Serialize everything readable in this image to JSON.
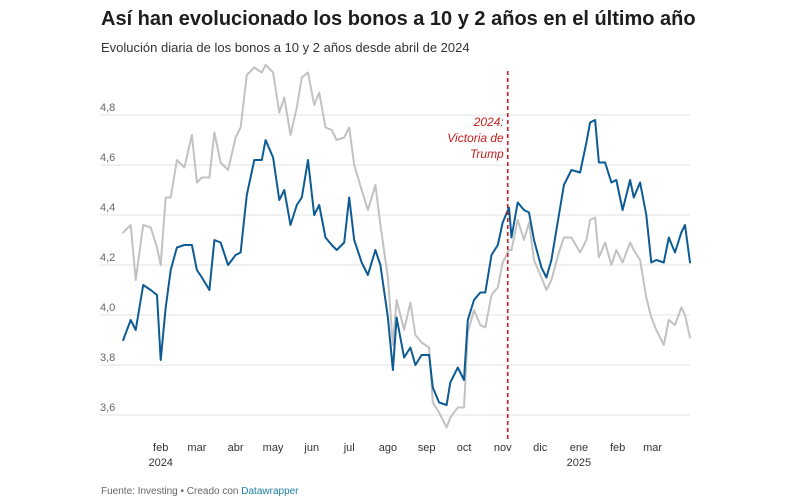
{
  "header": {
    "title": "Así han evolucionado los bonos a 10 y 2 años en el último año",
    "subtitle": "Evolución diaria de los bonos a 10 y 2 años desde abril de 2024"
  },
  "footer": {
    "source_text": "Fuente: Investing • Creado con",
    "credit_link": "Datawrapper"
  },
  "colors": {
    "series_10y": "#0c5b94",
    "series_2y": "#c2c2c2",
    "annotation": "#c71e1d",
    "grid": "#e3e3e3"
  },
  "chart_data": {
    "type": "line",
    "title": "Así han evolucionado los bonos a 10 y 2 años en el último año",
    "xlabel": "",
    "ylabel": "",
    "ylim": [
      3.5,
      5.0
    ],
    "y_ticks": [
      3.6,
      3.8,
      4.0,
      4.2,
      4.4,
      4.6,
      4.8
    ],
    "y_tick_labels": [
      "3,6",
      "3,8",
      "4,0",
      "4,2",
      "4,4",
      "4,6",
      "4,8"
    ],
    "x_range": [
      "2024-01-01",
      "2025-03-31"
    ],
    "x_ticks": [
      {
        "date": "2024-02-01",
        "label": "feb",
        "sublabel": "2024"
      },
      {
        "date": "2024-03-01",
        "label": "mar",
        "sublabel": ""
      },
      {
        "date": "2024-04-01",
        "label": "abr",
        "sublabel": ""
      },
      {
        "date": "2024-05-01",
        "label": "may",
        "sublabel": ""
      },
      {
        "date": "2024-06-01",
        "label": "jun",
        "sublabel": ""
      },
      {
        "date": "2024-07-01",
        "label": "jul",
        "sublabel": ""
      },
      {
        "date": "2024-08-01",
        "label": "ago",
        "sublabel": ""
      },
      {
        "date": "2024-09-01",
        "label": "sep",
        "sublabel": ""
      },
      {
        "date": "2024-10-01",
        "label": "oct",
        "sublabel": ""
      },
      {
        "date": "2024-11-01",
        "label": "nov",
        "sublabel": ""
      },
      {
        "date": "2024-12-01",
        "label": "dic",
        "sublabel": ""
      },
      {
        "date": "2025-01-01",
        "label": "ene",
        "sublabel": "2025"
      },
      {
        "date": "2025-02-01",
        "label": "feb",
        "sublabel": ""
      },
      {
        "date": "2025-03-01",
        "label": "mar",
        "sublabel": ""
      }
    ],
    "grid": true,
    "annotation": {
      "date": "2024-11-05",
      "lines": [
        "2024:",
        "Victoria de",
        "Trump"
      ]
    },
    "series": [
      {
        "key": "10y",
        "values": [
          [
            "2024-01-02",
            3.9
          ],
          [
            "2024-01-08",
            3.98
          ],
          [
            "2024-01-12",
            3.94
          ],
          [
            "2024-01-18",
            4.12
          ],
          [
            "2024-01-24",
            4.1
          ],
          [
            "2024-01-29",
            4.08
          ],
          [
            "2024-02-01",
            3.82
          ],
          [
            "2024-02-05",
            4.03
          ],
          [
            "2024-02-09",
            4.18
          ],
          [
            "2024-02-14",
            4.27
          ],
          [
            "2024-02-20",
            4.28
          ],
          [
            "2024-02-26",
            4.28
          ],
          [
            "2024-03-01",
            4.18
          ],
          [
            "2024-03-05",
            4.15
          ],
          [
            "2024-03-11",
            4.1
          ],
          [
            "2024-03-15",
            4.3
          ],
          [
            "2024-03-20",
            4.29
          ],
          [
            "2024-03-26",
            4.2
          ],
          [
            "2024-04-01",
            4.24
          ],
          [
            "2024-04-05",
            4.25
          ],
          [
            "2024-04-10",
            4.48
          ],
          [
            "2024-04-16",
            4.62
          ],
          [
            "2024-04-22",
            4.62
          ],
          [
            "2024-04-25",
            4.7
          ],
          [
            "2024-05-01",
            4.63
          ],
          [
            "2024-05-06",
            4.46
          ],
          [
            "2024-05-10",
            4.5
          ],
          [
            "2024-05-15",
            4.36
          ],
          [
            "2024-05-20",
            4.44
          ],
          [
            "2024-05-24",
            4.47
          ],
          [
            "2024-05-29",
            4.62
          ],
          [
            "2024-06-03",
            4.4
          ],
          [
            "2024-06-07",
            4.44
          ],
          [
            "2024-06-12",
            4.31
          ],
          [
            "2024-06-17",
            4.28
          ],
          [
            "2024-06-21",
            4.26
          ],
          [
            "2024-06-27",
            4.29
          ],
          [
            "2024-07-01",
            4.47
          ],
          [
            "2024-07-05",
            4.3
          ],
          [
            "2024-07-11",
            4.21
          ],
          [
            "2024-07-16",
            4.16
          ],
          [
            "2024-07-22",
            4.26
          ],
          [
            "2024-07-26",
            4.2
          ],
          [
            "2024-08-01",
            3.99
          ],
          [
            "2024-08-05",
            3.78
          ],
          [
            "2024-08-08",
            3.99
          ],
          [
            "2024-08-14",
            3.83
          ],
          [
            "2024-08-19",
            3.87
          ],
          [
            "2024-08-23",
            3.8
          ],
          [
            "2024-08-28",
            3.84
          ],
          [
            "2024-09-03",
            3.84
          ],
          [
            "2024-09-06",
            3.71
          ],
          [
            "2024-09-11",
            3.65
          ],
          [
            "2024-09-17",
            3.64
          ],
          [
            "2024-09-20",
            3.73
          ],
          [
            "2024-09-26",
            3.79
          ],
          [
            "2024-10-01",
            3.74
          ],
          [
            "2024-10-04",
            3.98
          ],
          [
            "2024-10-09",
            4.06
          ],
          [
            "2024-10-14",
            4.09
          ],
          [
            "2024-10-18",
            4.09
          ],
          [
            "2024-10-23",
            4.24
          ],
          [
            "2024-10-28",
            4.28
          ],
          [
            "2024-11-01",
            4.37
          ],
          [
            "2024-11-06",
            4.43
          ],
          [
            "2024-11-08",
            4.31
          ],
          [
            "2024-11-13",
            4.45
          ],
          [
            "2024-11-18",
            4.42
          ],
          [
            "2024-11-22",
            4.41
          ],
          [
            "2024-11-26",
            4.3
          ],
          [
            "2024-12-02",
            4.19
          ],
          [
            "2024-12-06",
            4.15
          ],
          [
            "2024-12-10",
            4.22
          ],
          [
            "2024-12-16",
            4.4
          ],
          [
            "2024-12-20",
            4.52
          ],
          [
            "2024-12-26",
            4.58
          ],
          [
            "2025-01-02",
            4.57
          ],
          [
            "2025-01-07",
            4.69
          ],
          [
            "2025-01-10",
            4.77
          ],
          [
            "2025-01-14",
            4.78
          ],
          [
            "2025-01-17",
            4.61
          ],
          [
            "2025-01-22",
            4.61
          ],
          [
            "2025-01-27",
            4.53
          ],
          [
            "2025-01-31",
            4.54
          ],
          [
            "2025-02-05",
            4.42
          ],
          [
            "2025-02-11",
            4.54
          ],
          [
            "2025-02-14",
            4.47
          ],
          [
            "2025-02-19",
            4.53
          ],
          [
            "2025-02-24",
            4.4
          ],
          [
            "2025-02-28",
            4.21
          ],
          [
            "2025-03-04",
            4.22
          ],
          [
            "2025-03-10",
            4.21
          ],
          [
            "2025-03-14",
            4.31
          ],
          [
            "2025-03-19",
            4.25
          ],
          [
            "2025-03-24",
            4.33
          ],
          [
            "2025-03-27",
            4.36
          ],
          [
            "2025-03-31",
            4.21
          ]
        ]
      },
      {
        "key": "2y",
        "values": [
          [
            "2024-01-02",
            4.33
          ],
          [
            "2024-01-08",
            4.36
          ],
          [
            "2024-01-12",
            4.14
          ],
          [
            "2024-01-18",
            4.36
          ],
          [
            "2024-01-24",
            4.35
          ],
          [
            "2024-01-29",
            4.27
          ],
          [
            "2024-02-01",
            4.2
          ],
          [
            "2024-02-05",
            4.47
          ],
          [
            "2024-02-09",
            4.47
          ],
          [
            "2024-02-14",
            4.62
          ],
          [
            "2024-02-20",
            4.59
          ],
          [
            "2024-02-26",
            4.72
          ],
          [
            "2024-03-01",
            4.53
          ],
          [
            "2024-03-05",
            4.55
          ],
          [
            "2024-03-11",
            4.55
          ],
          [
            "2024-03-15",
            4.73
          ],
          [
            "2024-03-20",
            4.61
          ],
          [
            "2024-03-26",
            4.58
          ],
          [
            "2024-04-01",
            4.71
          ],
          [
            "2024-04-05",
            4.75
          ],
          [
            "2024-04-10",
            4.96
          ],
          [
            "2024-04-16",
            4.99
          ],
          [
            "2024-04-22",
            4.97
          ],
          [
            "2024-04-25",
            5.0
          ],
          [
            "2024-05-01",
            4.97
          ],
          [
            "2024-05-06",
            4.81
          ],
          [
            "2024-05-10",
            4.87
          ],
          [
            "2024-05-15",
            4.72
          ],
          [
            "2024-05-20",
            4.83
          ],
          [
            "2024-05-24",
            4.95
          ],
          [
            "2024-05-29",
            4.97
          ],
          [
            "2024-06-03",
            4.84
          ],
          [
            "2024-06-07",
            4.89
          ],
          [
            "2024-06-12",
            4.75
          ],
          [
            "2024-06-17",
            4.74
          ],
          [
            "2024-06-21",
            4.7
          ],
          [
            "2024-06-27",
            4.71
          ],
          [
            "2024-07-01",
            4.75
          ],
          [
            "2024-07-05",
            4.6
          ],
          [
            "2024-07-11",
            4.5
          ],
          [
            "2024-07-16",
            4.42
          ],
          [
            "2024-07-22",
            4.52
          ],
          [
            "2024-07-26",
            4.36
          ],
          [
            "2024-08-01",
            4.15
          ],
          [
            "2024-08-05",
            3.88
          ],
          [
            "2024-08-08",
            4.06
          ],
          [
            "2024-08-14",
            3.94
          ],
          [
            "2024-08-19",
            4.05
          ],
          [
            "2024-08-23",
            3.92
          ],
          [
            "2024-08-28",
            3.89
          ],
          [
            "2024-09-03",
            3.87
          ],
          [
            "2024-09-06",
            3.65
          ],
          [
            "2024-09-11",
            3.61
          ],
          [
            "2024-09-17",
            3.55
          ],
          [
            "2024-09-20",
            3.59
          ],
          [
            "2024-09-26",
            3.63
          ],
          [
            "2024-10-01",
            3.63
          ],
          [
            "2024-10-04",
            3.93
          ],
          [
            "2024-10-09",
            4.02
          ],
          [
            "2024-10-14",
            3.96
          ],
          [
            "2024-10-18",
            3.95
          ],
          [
            "2024-10-23",
            4.08
          ],
          [
            "2024-10-28",
            4.11
          ],
          [
            "2024-11-01",
            4.21
          ],
          [
            "2024-11-06",
            4.26
          ],
          [
            "2024-11-08",
            4.26
          ],
          [
            "2024-11-13",
            4.38
          ],
          [
            "2024-11-18",
            4.3
          ],
          [
            "2024-11-22",
            4.37
          ],
          [
            "2024-11-26",
            4.22
          ],
          [
            "2024-12-02",
            4.15
          ],
          [
            "2024-12-06",
            4.1
          ],
          [
            "2024-12-10",
            4.14
          ],
          [
            "2024-12-16",
            4.25
          ],
          [
            "2024-12-20",
            4.31
          ],
          [
            "2024-12-26",
            4.31
          ],
          [
            "2025-01-02",
            4.25
          ],
          [
            "2025-01-07",
            4.3
          ],
          [
            "2025-01-10",
            4.38
          ],
          [
            "2025-01-14",
            4.39
          ],
          [
            "2025-01-17",
            4.23
          ],
          [
            "2025-01-22",
            4.29
          ],
          [
            "2025-01-27",
            4.2
          ],
          [
            "2025-01-31",
            4.26
          ],
          [
            "2025-02-05",
            4.21
          ],
          [
            "2025-02-11",
            4.29
          ],
          [
            "2025-02-14",
            4.26
          ],
          [
            "2025-02-19",
            4.22
          ],
          [
            "2025-02-24",
            4.07
          ],
          [
            "2025-02-28",
            3.99
          ],
          [
            "2025-03-04",
            3.94
          ],
          [
            "2025-03-10",
            3.88
          ],
          [
            "2025-03-14",
            3.98
          ],
          [
            "2025-03-19",
            3.96
          ],
          [
            "2025-03-24",
            4.03
          ],
          [
            "2025-03-27",
            4.0
          ],
          [
            "2025-03-31",
            3.91
          ]
        ]
      }
    ]
  }
}
